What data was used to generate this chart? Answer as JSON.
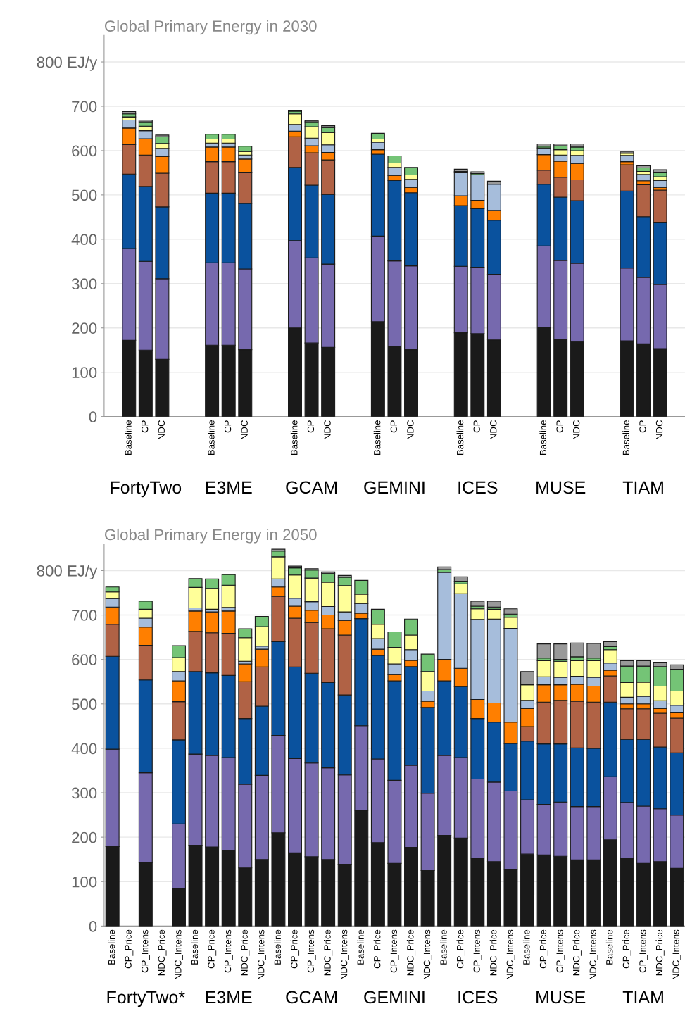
{
  "chart_data": [
    {
      "type": "bar",
      "stacked": true,
      "title": "Global Primary Energy in 2030",
      "grid": "y",
      "categories": [
        null,
        "Baseline",
        "CP",
        "NDC",
        null,
        null,
        "Baseline",
        "CP",
        "NDC",
        null,
        null,
        "Baseline",
        "CP",
        "NDC",
        null,
        null,
        "Baseline",
        "CP",
        "NDC",
        null,
        null,
        "Baseline",
        "CP",
        "NDC",
        null,
        null,
        "Baseline",
        "CP",
        "NDC",
        null,
        null,
        "Baseline",
        "CP",
        "NDC",
        null
      ],
      "ylim": [
        0,
        860
      ],
      "yticks": [
        0,
        100,
        200,
        300,
        400,
        500,
        600,
        700,
        {
          "value": 800,
          "label": "800 EJ/y"
        }
      ],
      "annotations": [
        "FortyTwo",
        "E3ME",
        "GCAM",
        "GEMINI",
        "ICES",
        "MUSE",
        "TIAM"
      ],
      "series": [
        {
          "color": "#1a1a1a",
          "values": [
            null,
            172,
            150,
            129,
            null,
            null,
            161,
            161,
            151,
            null,
            null,
            200,
            166,
            156,
            null,
            null,
            214,
            159,
            151,
            null,
            null,
            189,
            187,
            173,
            null,
            null,
            202,
            175,
            169,
            null,
            null,
            171,
            164,
            152,
            null
          ]
        },
        {
          "color": "#7669ae",
          "values": [
            null,
            207,
            200,
            182,
            null,
            null,
            186,
            186,
            182,
            null,
            null,
            197,
            192,
            188,
            null,
            null,
            193,
            192,
            189,
            null,
            null,
            150,
            150,
            148,
            null,
            null,
            183,
            177,
            177,
            null,
            null,
            164,
            150,
            146,
            null
          ]
        },
        {
          "color": "#0a529e",
          "values": [
            null,
            168,
            169,
            162,
            null,
            null,
            157,
            157,
            148,
            null,
            null,
            165,
            164,
            157,
            null,
            null,
            185,
            182,
            165,
            null,
            null,
            137,
            132,
            122,
            null,
            null,
            139,
            143,
            141,
            null,
            null,
            174,
            137,
            139,
            null
          ]
        },
        {
          "color": "#b06245",
          "values": [
            null,
            67,
            71,
            76,
            null,
            null,
            71,
            71,
            69,
            null,
            null,
            69,
            73,
            78,
            null,
            null,
            null,
            null,
            null,
            null,
            null,
            null,
            null,
            null,
            null,
            null,
            32,
            45,
            47,
            null,
            null,
            59,
            72,
            74,
            null
          ]
        },
        {
          "color": "#ff7f00",
          "values": [
            null,
            37,
            37,
            38,
            null,
            null,
            33,
            33,
            31,
            null,
            null,
            13,
            16,
            17,
            null,
            null,
            10,
            11,
            12,
            null,
            null,
            22,
            19,
            22,
            null,
            null,
            35,
            36,
            37,
            null,
            null,
            7,
            9,
            6,
            null
          ]
        },
        {
          "color": "#a6bddb",
          "values": [
            null,
            18,
            18,
            18,
            null,
            null,
            9,
            9,
            9,
            null,
            null,
            15,
            17,
            17,
            null,
            null,
            17,
            18,
            18,
            null,
            null,
            52,
            57,
            59,
            null,
            null,
            15,
            14,
            18,
            null,
            null,
            14,
            14,
            16,
            null
          ]
        },
        {
          "color": "#ffff99",
          "values": [
            null,
            7,
            10,
            11,
            null,
            null,
            9,
            9,
            8,
            null,
            null,
            24,
            26,
            28,
            null,
            null,
            7,
            10,
            10,
            null,
            null,
            null,
            null,
            null,
            null,
            null,
            null,
            12,
            11,
            null,
            null,
            5,
            7,
            8,
            null
          ]
        },
        {
          "color": "#74c476",
          "values": [
            null,
            7,
            10,
            15,
            null,
            null,
            11,
            11,
            12,
            null,
            null,
            6,
            11,
            11,
            null,
            null,
            13,
            16,
            17,
            null,
            null,
            3,
            3,
            null,
            null,
            null,
            4,
            9,
            8,
            null,
            null,
            null,
            8,
            9,
            null
          ]
        },
        {
          "color": "#999999",
          "values": [
            null,
            5,
            4,
            4,
            null,
            null,
            null,
            null,
            null,
            null,
            null,
            2,
            3,
            4,
            null,
            null,
            null,
            null,
            null,
            null,
            null,
            5,
            4,
            7,
            null,
            null,
            5,
            4,
            7,
            null,
            null,
            3,
            5,
            7,
            null
          ]
        }
      ]
    },
    {
      "type": "bar",
      "stacked": true,
      "title": "Global Primary Energy in 2050",
      "grid": "y",
      "categories": [
        "Baseline",
        "CP_Price",
        "CP_Intens",
        "NDC_Price",
        "NDC_Intens",
        "Baseline",
        "CP_Price",
        "CP_Intens",
        "NDC_Price",
        "NDC_Intens",
        "Baseline",
        "CP_Price",
        "CP_Intens",
        "NDC_Price",
        "NDC_Intens",
        "Baseline",
        "CP_Price",
        "CP_Intens",
        "NDC_Price",
        "NDC_Intens",
        "Baseline",
        "CP_Price",
        "CP_Intens",
        "NDC_Price",
        "NDC_Intens",
        "Baseline",
        "CP_Price",
        "CP_Intens",
        "NDC_Price",
        "NDC_Intens",
        "Baseline",
        "CP_Price",
        "CP_Intens",
        "NDC_Price",
        "NDC_Intens"
      ],
      "ylim": [
        0,
        860
      ],
      "yticks": [
        0,
        100,
        200,
        300,
        400,
        500,
        600,
        700,
        {
          "value": 800,
          "label": "800 EJ/y"
        }
      ],
      "annotations": [
        "FortyTwo*",
        "E3ME",
        "GCAM",
        "GEMINI",
        "ICES",
        "MUSE",
        "TIAM"
      ],
      "series": [
        {
          "color": "#1a1a1a",
          "values": [
            179,
            null,
            143,
            null,
            85,
            182,
            178,
            171,
            131,
            150,
            210,
            165,
            156,
            150,
            139,
            261,
            188,
            141,
            177,
            125,
            204,
            198,
            153,
            145,
            128,
            162,
            160,
            157,
            149,
            149,
            194,
            152,
            141,
            145,
            130
          ]
        },
        {
          "color": "#7669ae",
          "values": [
            219,
            null,
            202,
            null,
            145,
            205,
            206,
            208,
            188,
            189,
            219,
            212,
            211,
            206,
            201,
            190,
            188,
            187,
            185,
            174,
            180,
            181,
            178,
            179,
            176,
            122,
            114,
            122,
            120,
            120,
            142,
            126,
            129,
            119,
            120
          ]
        },
        {
          "color": "#0a529e",
          "values": [
            209,
            null,
            209,
            null,
            189,
            186,
            186,
            185,
            148,
            156,
            211,
            206,
            202,
            192,
            180,
            241,
            233,
            224,
            222,
            193,
            168,
            160,
            136,
            135,
            107,
            132,
            136,
            131,
            132,
            131,
            168,
            142,
            150,
            139,
            140
          ]
        },
        {
          "color": "#b06245",
          "values": [
            72,
            null,
            78,
            null,
            86,
            90,
            90,
            95,
            83,
            88,
            102,
            110,
            114,
            121,
            135,
            null,
            null,
            null,
            null,
            null,
            null,
            null,
            null,
            null,
            null,
            33,
            94,
            98,
            105,
            104,
            59,
            69,
            69,
            76,
            78
          ]
        },
        {
          "color": "#ff7f00",
          "values": [
            39,
            null,
            41,
            null,
            47,
            46,
            47,
            50,
            40,
            40,
            21,
            27,
            28,
            31,
            33,
            12,
            14,
            14,
            14,
            14,
            48,
            41,
            43,
            43,
            48,
            41,
            39,
            35,
            38,
            36,
            13,
            11,
            11,
            11,
            12
          ]
        },
        {
          "color": "#a6bddb",
          "values": [
            19,
            null,
            20,
            null,
            21,
            7,
            6,
            8,
            6,
            7,
            18,
            18,
            19,
            19,
            19,
            22,
            24,
            24,
            24,
            23,
            196,
            168,
            180,
            189,
            211,
            18,
            18,
            17,
            18,
            20,
            16,
            15,
            17,
            17,
            17
          ]
        },
        {
          "color": "#ffff99",
          "values": [
            15,
            null,
            20,
            null,
            31,
            46,
            47,
            50,
            53,
            44,
            50,
            52,
            53,
            55,
            59,
            21,
            32,
            37,
            33,
            44,
            null,
            22,
            24,
            22,
            25,
            35,
            36,
            36,
            35,
            37,
            30,
            33,
            32,
            33,
            32
          ]
        },
        {
          "color": "#74c476",
          "values": [
            11,
            null,
            18,
            null,
            27,
            20,
            21,
            24,
            20,
            23,
            13,
            16,
            18,
            20,
            19,
            31,
            34,
            35,
            36,
            39,
            6,
            6,
            6,
            5,
            7,
            null,
            6,
            4,
            9,
            6,
            7,
            37,
            36,
            44,
            49
          ]
        },
        {
          "color": "#999999",
          "values": [
            null,
            null,
            null,
            null,
            null,
            null,
            null,
            null,
            null,
            null,
            4,
            4,
            3,
            3,
            4,
            null,
            null,
            null,
            null,
            null,
            6,
            10,
            11,
            13,
            12,
            30,
            32,
            35,
            31,
            33,
            11,
            12,
            12,
            10,
            10
          ]
        }
      ]
    }
  ]
}
